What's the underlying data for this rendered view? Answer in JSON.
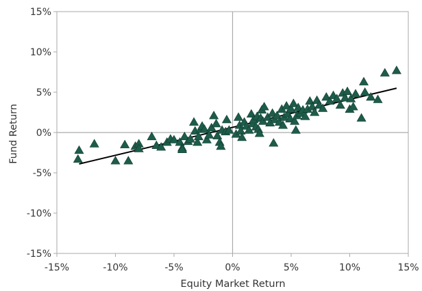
{
  "chart_data": {
    "type": "scatter",
    "xlabel": "Equity Market Return",
    "ylabel": "Fund Return",
    "xlim": [
      -15,
      15
    ],
    "ylim": [
      -15,
      15
    ],
    "xticks": [
      -15,
      -10,
      -5,
      0,
      5,
      10,
      15
    ],
    "yticks": [
      -15,
      -10,
      -5,
      0,
      5,
      10,
      15
    ],
    "xtick_labels": [
      "-15%",
      "-10%",
      "-5%",
      "0%",
      "5%",
      "10%",
      "15%"
    ],
    "ytick_labels": [
      "-15%",
      "-10%",
      "-5%",
      "0%",
      "5%",
      "10%",
      "15%"
    ],
    "grid": false,
    "marker": "triangle",
    "marker_color": "#1e5c4a",
    "trendline": {
      "x": [
        -13.1,
        14.0
      ],
      "y": [
        -3.9,
        5.5
      ],
      "color": "#000000"
    },
    "points": [
      [
        -13.1,
        -2.2
      ],
      [
        -13.2,
        -3.3
      ],
      [
        -11.8,
        -1.4
      ],
      [
        -10.0,
        -3.5
      ],
      [
        -9.2,
        -1.5
      ],
      [
        -8.9,
        -3.5
      ],
      [
        -8.3,
        -1.7
      ],
      [
        -8.0,
        -1.4
      ],
      [
        -8.0,
        -2.0
      ],
      [
        -6.9,
        -0.5
      ],
      [
        -6.5,
        -1.6
      ],
      [
        -6.1,
        -1.8
      ],
      [
        -5.6,
        -1.2
      ],
      [
        -5.3,
        -0.8
      ],
      [
        -5.0,
        -0.9
      ],
      [
        -4.5,
        -1.2
      ],
      [
        -4.3,
        -1.9
      ],
      [
        -4.3,
        -2.1
      ],
      [
        -4.1,
        -0.5
      ],
      [
        -3.8,
        -1.1
      ],
      [
        -3.6,
        -0.8
      ],
      [
        -3.3,
        1.3
      ],
      [
        -3.2,
        0.2
      ],
      [
        -3.0,
        -1.2
      ],
      [
        -2.9,
        -0.5
      ],
      [
        -2.7,
        0.4
      ],
      [
        -2.6,
        0.8
      ],
      [
        -2.4,
        0.4
      ],
      [
        -2.2,
        -0.9
      ],
      [
        -2.0,
        -0.3
      ],
      [
        -1.8,
        0.6
      ],
      [
        -1.6,
        2.1
      ],
      [
        -1.4,
        1.1
      ],
      [
        -1.3,
        -0.4
      ],
      [
        -1.1,
        -1.2
      ],
      [
        -1.0,
        -1.7
      ],
      [
        -0.9,
        0.3
      ],
      [
        -0.6,
        0.1
      ],
      [
        -0.5,
        1.6
      ],
      [
        -0.3,
        0.3
      ],
      [
        0.3,
        -0.2
      ],
      [
        0.5,
        1.9
      ],
      [
        0.6,
        0.9
      ],
      [
        0.7,
        0.2
      ],
      [
        0.8,
        -0.6
      ],
      [
        1.0,
        1.3
      ],
      [
        1.2,
        0.8
      ],
      [
        1.4,
        0.3
      ],
      [
        1.6,
        2.3
      ],
      [
        1.7,
        1.1
      ],
      [
        1.8,
        1.6
      ],
      [
        2.0,
        0.7
      ],
      [
        2.1,
        2.0
      ],
      [
        2.2,
        0.4
      ],
      [
        2.3,
        -0.1
      ],
      [
        2.4,
        1.8
      ],
      [
        2.5,
        2.8
      ],
      [
        2.6,
        1.4
      ],
      [
        2.7,
        3.2
      ],
      [
        3.0,
        1.9
      ],
      [
        3.2,
        1.2
      ],
      [
        3.4,
        2.4
      ],
      [
        3.5,
        -1.3
      ],
      [
        3.6,
        1.6
      ],
      [
        3.8,
        2.1
      ],
      [
        4.0,
        1.3
      ],
      [
        4.2,
        2.9
      ],
      [
        4.3,
        0.9
      ],
      [
        4.4,
        1.9
      ],
      [
        4.6,
        3.3
      ],
      [
        4.7,
        2.3
      ],
      [
        4.9,
        1.7
      ],
      [
        5.0,
        2.9
      ],
      [
        5.2,
        3.6
      ],
      [
        5.3,
        1.4
      ],
      [
        5.4,
        0.3
      ],
      [
        5.5,
        2.1
      ],
      [
        5.6,
        3.1
      ],
      [
        5.8,
        2.4
      ],
      [
        6.0,
        2.8
      ],
      [
        6.2,
        2.0
      ],
      [
        6.4,
        2.9
      ],
      [
        6.6,
        3.9
      ],
      [
        6.8,
        3.2
      ],
      [
        7.0,
        2.5
      ],
      [
        7.2,
        4.0
      ],
      [
        7.4,
        3.4
      ],
      [
        7.7,
        3.0
      ],
      [
        8.0,
        4.4
      ],
      [
        8.3,
        3.9
      ],
      [
        8.6,
        4.6
      ],
      [
        8.9,
        4.2
      ],
      [
        9.2,
        3.4
      ],
      [
        9.4,
        4.9
      ],
      [
        9.6,
        4.3
      ],
      [
        9.8,
        5.1
      ],
      [
        10.0,
        2.9
      ],
      [
        10.1,
        4.2
      ],
      [
        10.3,
        3.2
      ],
      [
        10.5,
        4.8
      ],
      [
        11.0,
        1.8
      ],
      [
        11.2,
        6.3
      ],
      [
        11.3,
        5.0
      ],
      [
        11.8,
        4.4
      ],
      [
        12.4,
        4.1
      ],
      [
        13.0,
        7.4
      ],
      [
        14.0,
        7.7
      ]
    ]
  }
}
